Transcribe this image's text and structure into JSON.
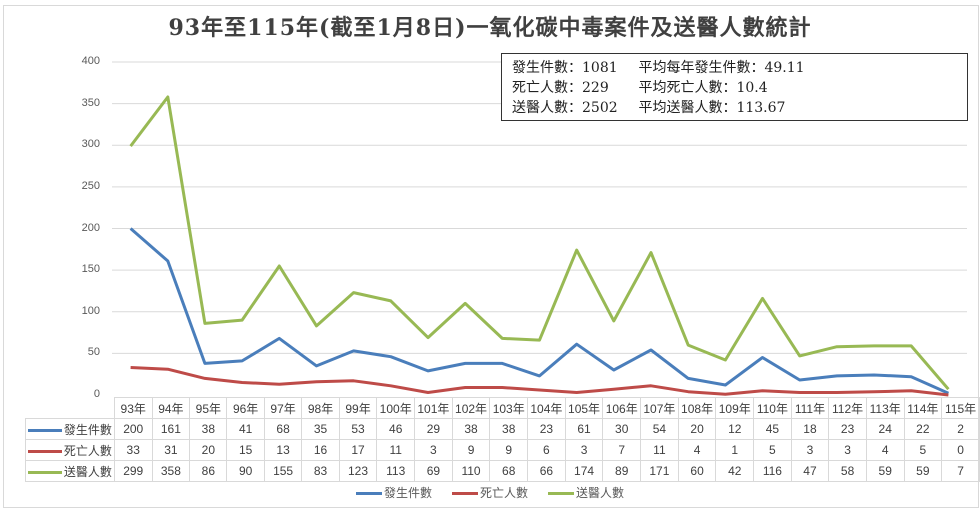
{
  "title": "93年至115年(截至1月8日)一氧化碳中毒案件及送醫人數統計",
  "summary": {
    "rows": [
      {
        "label1": "發生件數：1081",
        "label2": "平均每年發生件數：49.11"
      },
      {
        "label1": "死亡人數：229",
        "label2": "平均死亡人數：10.4"
      },
      {
        "label1": "送醫人數：2502",
        "label2": "平均送醫人數：113.67"
      }
    ]
  },
  "y_ticks": [
    "400",
    "350",
    "300",
    "250",
    "200",
    "150",
    "100",
    "50",
    "0"
  ],
  "legend": [
    {
      "name": "發生件數",
      "color": "#4A7EBB"
    },
    {
      "name": "死亡人數",
      "color": "#BE4B48"
    },
    {
      "name": "送醫人數",
      "color": "#98B954"
    }
  ],
  "chart_data": {
    "type": "line",
    "title": "93年至115年(截至1月8日)一氧化碳中毒案件及送醫人數統計",
    "xlabel": "",
    "ylabel": "",
    "ylim": [
      0,
      400
    ],
    "grid": true,
    "legend_position": "bottom",
    "categories": [
      "93年",
      "94年",
      "95年",
      "96年",
      "97年",
      "98年",
      "99年",
      "100年",
      "101年",
      "102年",
      "103年",
      "104年",
      "105年",
      "106年",
      "107年",
      "108年",
      "109年",
      "110年",
      "111年",
      "112年",
      "113年",
      "114年",
      "115年"
    ],
    "series": [
      {
        "name": "發生件數",
        "color": "#4A7EBB",
        "values": [
          200,
          161,
          38,
          41,
          68,
          35,
          53,
          46,
          29,
          38,
          38,
          23,
          61,
          30,
          54,
          20,
          12,
          45,
          18,
          23,
          24,
          22,
          2
        ]
      },
      {
        "name": "死亡人數",
        "color": "#BE4B48",
        "values": [
          33,
          31,
          20,
          15,
          13,
          16,
          17,
          11,
          3,
          9,
          9,
          6,
          3,
          7,
          11,
          4,
          1,
          5,
          3,
          3,
          4,
          5,
          0
        ]
      },
      {
        "name": "送醫人數",
        "color": "#98B954",
        "values": [
          299,
          358,
          86,
          90,
          155,
          83,
          123,
          113,
          69,
          110,
          68,
          66,
          174,
          89,
          171,
          60,
          42,
          116,
          47,
          58,
          59,
          59,
          7
        ]
      }
    ],
    "annotations": [
      "發生件數：1081",
      "平均每年發生件數：49.11",
      "死亡人數：229",
      "平均死亡人數：10.4",
      "送醫人數：2502",
      "平均送醫人數：113.67"
    ],
    "data_table": true
  }
}
